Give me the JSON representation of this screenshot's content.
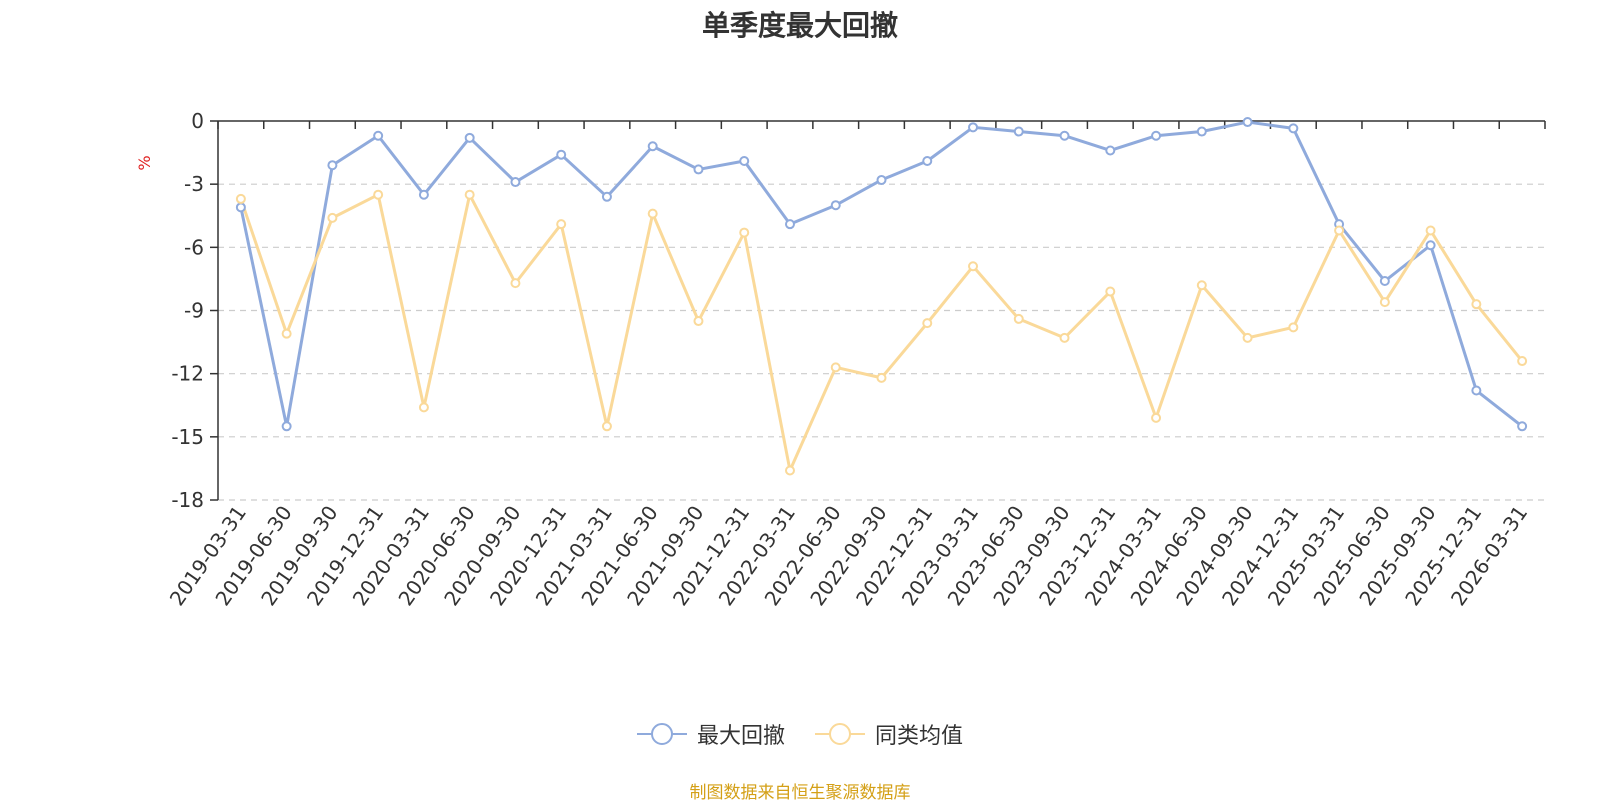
{
  "chart_data": {
    "type": "line",
    "title": "单季度最大回撤",
    "ylabel": "%",
    "ylim": [
      -18,
      0
    ],
    "yticks": [
      0,
      -3,
      -6,
      -9,
      -12,
      -15,
      -18
    ],
    "grid": true,
    "legend_position": "bottom-center",
    "categories": [
      "2019-03-31",
      "2019-06-30",
      "2019-09-30",
      "2019-12-31",
      "2020-03-31",
      "2020-06-30",
      "2020-09-30",
      "2020-12-31",
      "2021-03-31",
      "2021-06-30",
      "2021-09-30",
      "2021-12-31",
      "2022-03-31",
      "2022-06-30",
      "2022-09-30",
      "2022-12-31",
      "2023-03-31",
      "2023-06-30",
      "2023-09-30",
      "2023-12-31",
      "2024-03-31",
      "2024-06-30",
      "2024-09-30",
      "2024-12-31",
      "2025-03-31",
      "2025-06-30",
      "2025-09-30",
      "2025-12-31",
      "2026-03-31"
    ],
    "series": [
      {
        "name": "最大回撤",
        "color": "#8faadc",
        "values": [
          -4.1,
          -14.5,
          -2.1,
          -0.7,
          -3.5,
          -0.8,
          -2.9,
          -1.6,
          -3.6,
          -1.2,
          -2.3,
          -1.9,
          -4.9,
          -4.0,
          -2.8,
          -1.9,
          -0.3,
          -0.5,
          -0.7,
          -1.4,
          -0.7,
          -0.5,
          -0.05,
          -0.35,
          -4.9,
          -7.6,
          -5.9,
          -12.8,
          -14.5
        ]
      },
      {
        "name": "同类均值",
        "color": "#fad999",
        "values": [
          -3.7,
          -10.1,
          -4.6,
          -3.5,
          -13.6,
          -3.5,
          -7.7,
          -4.9,
          -14.5,
          -4.4,
          -9.5,
          -5.3,
          -16.6,
          -11.7,
          -12.2,
          -9.6,
          -6.9,
          -9.4,
          -10.3,
          -8.1,
          -14.1,
          -7.8,
          -10.3,
          -9.8,
          -5.2,
          -8.6,
          -5.2,
          -8.7,
          -11.4
        ]
      }
    ]
  },
  "footer": {
    "source": "制图数据来自恒生聚源数据库"
  }
}
